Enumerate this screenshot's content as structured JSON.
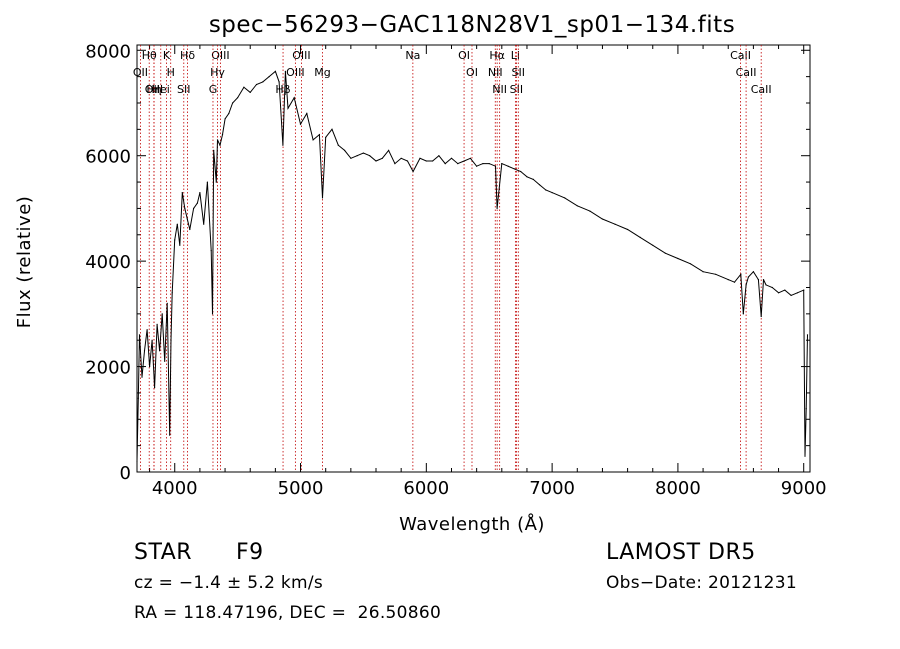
{
  "chart_data": {
    "type": "line",
    "title": "spec−56293−GAC118N28V1_sp01−134.fits",
    "xlabel": "Wavelength (Å)",
    "ylabel": "Flux (relative)",
    "xlim": [
      3700,
      9050
    ],
    "ylim": [
      0,
      8100
    ],
    "xticks": [
      4000,
      5000,
      6000,
      7000,
      8000,
      9000
    ],
    "yticks": [
      0,
      2000,
      4000,
      6000,
      8000
    ],
    "grid": false,
    "series": [
      {
        "x": [
          3700,
          3710,
          3720,
          3740,
          3760,
          3780,
          3800,
          3820,
          3840,
          3860,
          3880,
          3900,
          3920,
          3940,
          3960,
          3970,
          3980,
          4000,
          4020,
          4040,
          4060,
          4080,
          4100,
          4120,
          4150,
          4180,
          4200,
          4230,
          4260,
          4290,
          4300,
          4310,
          4330,
          4340,
          4360,
          4380,
          4400,
          4430,
          4460,
          4500,
          4550,
          4600,
          4650,
          4700,
          4750,
          4800,
          4830,
          4860,
          4880,
          4900,
          4950,
          5000,
          5050,
          5100,
          5150,
          5175,
          5200,
          5250,
          5300,
          5350,
          5400,
          5450,
          5500,
          5550,
          5600,
          5650,
          5700,
          5750,
          5800,
          5850,
          5895,
          5950,
          6000,
          6050,
          6100,
          6150,
          6200,
          6250,
          6300,
          6350,
          6400,
          6450,
          6500,
          6550,
          6563,
          6600,
          6650,
          6700,
          6750,
          6800,
          6850,
          6900,
          6950,
          7000,
          7100,
          7200,
          7300,
          7400,
          7500,
          7600,
          7700,
          7800,
          7900,
          8000,
          8100,
          8200,
          8300,
          8400,
          8450,
          8500,
          8520,
          8542,
          8560,
          8600,
          8640,
          8662,
          8680,
          8700,
          8750,
          8800,
          8850,
          8900,
          8950,
          9000,
          9010,
          9020,
          9030
        ],
        "y": [
          200,
          1400,
          2600,
          1800,
          2300,
          2700,
          2000,
          2500,
          1600,
          2800,
          2300,
          3000,
          2100,
          3200,
          700,
          2500,
          3400,
          4400,
          4700,
          4300,
          5300,
          5000,
          4800,
          4600,
          5000,
          5100,
          5300,
          4700,
          5500,
          4200,
          3000,
          6100,
          5500,
          6300,
          6200,
          6400,
          6700,
          6800,
          7000,
          7100,
          7300,
          7200,
          7350,
          7400,
          7500,
          7600,
          7400,
          6200,
          7600,
          6900,
          7100,
          6600,
          6800,
          6300,
          6400,
          5200,
          6350,
          6500,
          6200,
          6100,
          5950,
          6000,
          6050,
          6000,
          5900,
          5950,
          6100,
          5850,
          5950,
          5900,
          5700,
          5950,
          5900,
          5900,
          6000,
          5850,
          5950,
          5850,
          5900,
          5950,
          5800,
          5850,
          5850,
          5800,
          5000,
          5850,
          5800,
          5750,
          5700,
          5600,
          5550,
          5450,
          5350,
          5300,
          5200,
          5050,
          4950,
          4800,
          4700,
          4600,
          4450,
          4300,
          4150,
          4050,
          3950,
          3800,
          3750,
          3650,
          3600,
          3750,
          3000,
          3550,
          3700,
          3800,
          3650,
          2950,
          3650,
          3550,
          3500,
          3400,
          3450,
          3350,
          3400,
          3450,
          300,
          1200,
          2600
        ]
      }
    ],
    "lines": [
      {
        "label": "Hθ",
        "wl": 3797
      },
      {
        "label": "OII",
        "wl": 3727
      },
      {
        "label": "OIII",
        "wl": 3835
      },
      {
        "label": "Hei",
        "wl": 3889
      },
      {
        "label": "Hη",
        "wl": 3835
      },
      {
        "label": "K",
        "wl": 3934
      },
      {
        "label": "H",
        "wl": 3968
      },
      {
        "label": "Hδ",
        "wl": 4102
      },
      {
        "label": "SII",
        "wl": 4072
      },
      {
        "label": "OIII",
        "wl": 4363
      },
      {
        "label": "Hγ",
        "wl": 4340
      },
      {
        "label": "G",
        "wl": 4304
      },
      {
        "label": "OIII",
        "wl": 5007
      },
      {
        "label": "OIII",
        "wl": 4959
      },
      {
        "label": "Hβ",
        "wl": 4861
      },
      {
        "label": "Mg",
        "wl": 5175
      },
      {
        "label": "Na",
        "wl": 5893
      },
      {
        "label": "OI",
        "wl": 6300
      },
      {
        "label": "OI",
        "wl": 6363
      },
      {
        "label": "Hα",
        "wl": 6563
      },
      {
        "label": "NII",
        "wl": 6548
      },
      {
        "label": "NII",
        "wl": 6583
      },
      {
        "label": "SII",
        "wl": 6716
      },
      {
        "label": "Li",
        "wl": 6708
      },
      {
        "label": "SII",
        "wl": 6731
      },
      {
        "label": "CaII",
        "wl": 8498
      },
      {
        "label": "CaII",
        "wl": 8542
      },
      {
        "label": "CaII",
        "wl": 8662
      }
    ]
  },
  "info": {
    "object_class": "STAR",
    "subclass": "F9",
    "survey": "LAMOST DR5",
    "cz": "cz = −1.4 ± 5.2 km/s",
    "obs_date": "Obs−Date: 20121231",
    "coords": "RA = 118.47196, DEC =  26.50860"
  }
}
